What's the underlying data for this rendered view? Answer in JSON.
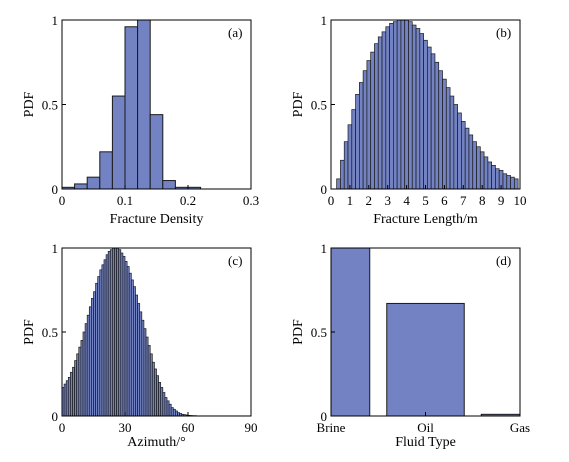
{
  "chart_data": [
    {
      "id": "a",
      "type": "bar",
      "panel_label": "(a)",
      "xlabel": "Fracture Density",
      "ylabel": "PDF",
      "xlim": [
        0,
        0.3
      ],
      "ylim": [
        0,
        1
      ],
      "xticks": [
        "0",
        "0.1",
        "0.2",
        "0.3"
      ],
      "yticks": [
        "0",
        "0.5",
        "1"
      ],
      "bin_width": 0.02,
      "x": [
        0.01,
        0.03,
        0.05,
        0.07,
        0.09,
        0.11,
        0.13,
        0.15,
        0.17,
        0.19,
        0.21
      ],
      "values": [
        0.01,
        0.03,
        0.07,
        0.22,
        0.55,
        0.96,
        1.0,
        0.44,
        0.05,
        0.01,
        0.01
      ],
      "grid": false,
      "bar_color": "#7282c3",
      "edge_color": "#1a1a1a"
    },
    {
      "id": "b",
      "type": "bar",
      "panel_label": "(b)",
      "xlabel": "Fracture Length/m",
      "ylabel": "PDF",
      "xlim": [
        0,
        10
      ],
      "ylim": [
        0,
        1
      ],
      "xticks": [
        "0",
        "1",
        "2",
        "3",
        "4",
        "5",
        "6",
        "7",
        "8",
        "9",
        "10"
      ],
      "yticks": [
        "0",
        "0.5",
        "1"
      ],
      "bin_width": 0.2,
      "x": [
        0.4,
        0.6,
        0.8,
        1.0,
        1.2,
        1.4,
        1.6,
        1.8,
        2.0,
        2.2,
        2.4,
        2.6,
        2.8,
        3.0,
        3.2,
        3.4,
        3.6,
        3.8,
        4.0,
        4.2,
        4.4,
        4.6,
        4.8,
        5.0,
        5.2,
        5.4,
        5.6,
        5.8,
        6.0,
        6.2,
        6.4,
        6.6,
        6.8,
        7.0,
        7.2,
        7.4,
        7.6,
        7.8,
        8.0,
        8.2,
        8.4,
        8.6,
        8.8,
        9.0,
        9.2,
        9.4,
        9.6,
        9.8
      ],
      "values": [
        0.06,
        0.17,
        0.28,
        0.38,
        0.47,
        0.56,
        0.63,
        0.7,
        0.76,
        0.81,
        0.86,
        0.9,
        0.93,
        0.96,
        0.98,
        0.99,
        1.0,
        1.0,
        1.0,
        0.99,
        0.97,
        0.95,
        0.92,
        0.88,
        0.84,
        0.8,
        0.75,
        0.7,
        0.65,
        0.6,
        0.55,
        0.5,
        0.45,
        0.4,
        0.36,
        0.32,
        0.28,
        0.25,
        0.22,
        0.19,
        0.16,
        0.14,
        0.12,
        0.11,
        0.09,
        0.08,
        0.07,
        0.06
      ],
      "grid": false,
      "bar_color": "#7282c3",
      "edge_color": "#1a1a1a"
    },
    {
      "id": "c",
      "type": "bar",
      "panel_label": "(c)",
      "xlabel": "Azimuth/°",
      "ylabel": "PDF",
      "xlim": [
        0,
        90
      ],
      "ylim": [
        0,
        1
      ],
      "xticks": [
        "0",
        "30",
        "60",
        "90"
      ],
      "yticks": [
        "0",
        "0.5",
        "1"
      ],
      "bin_width": 1,
      "x": [
        0.5,
        1.5,
        2.5,
        3.5,
        4.5,
        5.5,
        6.5,
        7.5,
        8.5,
        9.5,
        10.5,
        11.5,
        12.5,
        13.5,
        14.5,
        15.5,
        16.5,
        17.5,
        18.5,
        19.5,
        20.5,
        21.5,
        22.5,
        23.5,
        24.5,
        25.5,
        26.5,
        27.5,
        28.5,
        29.5,
        30.5,
        31.5,
        32.5,
        33.5,
        34.5,
        35.5,
        36.5,
        37.5,
        38.5,
        39.5,
        40.5,
        41.5,
        42.5,
        43.5,
        44.5,
        45.5,
        46.5,
        47.5,
        48.5,
        49.5,
        50.5,
        51.5,
        52.5,
        53.5,
        54.5,
        55.5,
        56.5,
        57.5,
        58.5,
        59.5,
        60.5,
        61.5,
        62.5,
        63.5,
        64.5,
        65.5,
        66.5,
        67.5,
        68.5,
        69.5,
        70.5,
        71.5,
        72.5,
        73.5,
        74.5,
        75.5,
        76.5,
        77.5,
        78.5,
        79.5,
        80.5,
        81.5,
        82.5,
        83.5,
        84.5,
        85.5,
        86.5,
        87.5,
        88.5,
        89.5
      ],
      "values": [
        0.17,
        0.19,
        0.21,
        0.23,
        0.26,
        0.29,
        0.33,
        0.37,
        0.41,
        0.45,
        0.5,
        0.55,
        0.6,
        0.65,
        0.7,
        0.74,
        0.79,
        0.83,
        0.87,
        0.9,
        0.93,
        0.96,
        0.98,
        0.99,
        1.0,
        1.0,
        1.0,
        0.99,
        0.97,
        0.95,
        0.92,
        0.89,
        0.85,
        0.81,
        0.77,
        0.72,
        0.67,
        0.62,
        0.57,
        0.52,
        0.47,
        0.42,
        0.37,
        0.32,
        0.28,
        0.24,
        0.2,
        0.17,
        0.14,
        0.11,
        0.09,
        0.07,
        0.05,
        0.04,
        0.03,
        0.02,
        0.015,
        0.01,
        0.008,
        0.006,
        0.004,
        0.003,
        0.002,
        0.002,
        0.001,
        0.001,
        0.001,
        0.001,
        0.001,
        0.001,
        0.001,
        0.001,
        0.001,
        0.001,
        0.001,
        0.001,
        0.001,
        0.001,
        0.001,
        0.001,
        0.001,
        0.001,
        0.001,
        0.001,
        0.001,
        0.001,
        0.001,
        0.001,
        0.001,
        0.001
      ],
      "grid": false,
      "bar_color": "#7282c3",
      "edge_color": "#1a1a1a"
    },
    {
      "id": "d",
      "type": "bar",
      "panel_label": "(d)",
      "xlabel": "Fluid Type",
      "ylabel": "PDF",
      "ylim": [
        0,
        1
      ],
      "yticks": [
        "0",
        "0.5",
        "1"
      ],
      "categories": [
        "Brine",
        "Oil",
        "Gas"
      ],
      "values": [
        1.0,
        0.67,
        0.01
      ],
      "grid": false,
      "bar_color": "#7282c3",
      "edge_color": "#1a1a1a"
    }
  ]
}
